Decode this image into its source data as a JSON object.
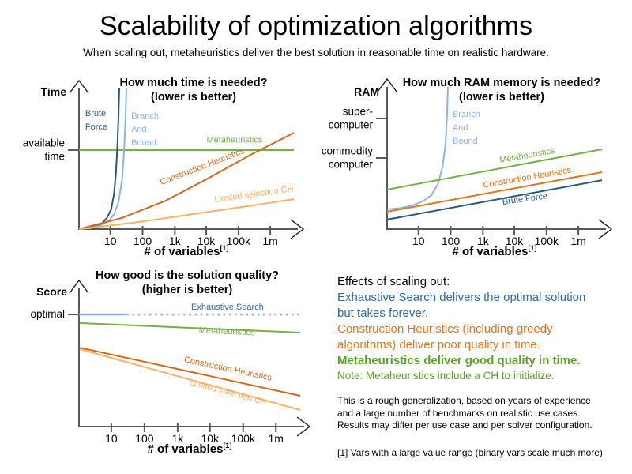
{
  "header": {
    "title": "Scalability of optimization algorithms",
    "subtitle": "When scaling out, metaheuristics deliver the best solution in reasonable time on realistic hardware."
  },
  "colors": {
    "dark_blue": "#2a5784",
    "light_blue": "#8eb4e3",
    "green": "#76b043",
    "dark_orange": "#d2691e",
    "light_orange": "#f8b267",
    "pale_blue": "#95b3d7",
    "text_blue": "#31699f",
    "text_orange": "#e2751d",
    "text_green": "#5aa028",
    "axis_gray": "#595959",
    "arrow_black": "#1a1a1a"
  },
  "effects": {
    "heading": "Effects of scaling out:",
    "exhaustive_line1": "Exhaustive Search delivers the optimal solution",
    "exhaustive_line2": "but takes forever.",
    "construction_line1": "Construction Heuristics (including greedy",
    "construction_line2": "algorithms) deliver poor quality in time.",
    "metaheuristics_line": "Metaheuristics deliver good quality in time.",
    "note_line": "Note: Metaheuristics include a CH to initialize."
  },
  "notes": {
    "disclaimer_line1": "This is a rough generalization, based on years of experience",
    "disclaimer_line2": "and a large number of benchmarks on realistic use cases.",
    "disclaimer_line3": "Results may differ per use case and per solver configuration.",
    "footnote": "[1] Vars with a large value range (binary vars scale much more)"
  },
  "chart_data": [
    {
      "id": "time",
      "type": "line",
      "title": "How much time is needed?",
      "title_note": "(lower is better)",
      "y_axis_label": "Time",
      "x_axis_label": "# of variables",
      "x_axis_label_sup": "[1]",
      "x_axis_type": "log",
      "x_tick_labels": [
        "10",
        "100",
        "1k",
        "10k",
        "100k",
        "1m"
      ],
      "y_ticks": [
        {
          "lines": [
            "available",
            "time"
          ],
          "ny": 0.562
        }
      ],
      "series": [
        {
          "name": "Metaheuristics",
          "color": "#76b043",
          "shape": "constant-at-available-time",
          "points": [
            [
              0,
              0.562
            ],
            [
              1,
              0.562
            ]
          ],
          "label": {
            "lines": [
              "Metaheuristics"
            ],
            "nx": 0.724,
            "ny": 0.615,
            "anchor": "middle",
            "rotate": 0
          }
        },
        {
          "name": "Brute Force",
          "color": "#2a5784",
          "shape": "exponential",
          "points": [
            [
              0,
              0
            ],
            [
              0.04,
              0.006
            ],
            [
              0.08,
              0.02
            ],
            [
              0.11,
              0.045
            ],
            [
              0.13,
              0.08
            ],
            [
              0.15,
              0.14
            ],
            [
              0.163,
              0.25
            ],
            [
              0.172,
              0.4
            ],
            [
              0.179,
              0.6
            ],
            [
              0.184,
              0.8
            ],
            [
              0.1875,
              1
            ]
          ],
          "label": {
            "lines": [
              "Brute",
              "Force"
            ],
            "nx": 0.029,
            "ny": 0.803,
            "anchor": "start",
            "rotate": 0
          }
        },
        {
          "name": "Branch And Bound",
          "color": "#8eb4e3",
          "shape": "exponential",
          "points": [
            [
              0,
              0
            ],
            [
              0.05,
              0.006
            ],
            [
              0.1,
              0.025
            ],
            [
              0.14,
              0.06
            ],
            [
              0.165,
              0.11
            ],
            [
              0.185,
              0.2
            ],
            [
              0.2,
              0.35
            ],
            [
              0.21,
              0.55
            ],
            [
              0.216,
              0.78
            ],
            [
              0.2205,
              1
            ]
          ],
          "label": {
            "lines": [
              "Branch",
              "And",
              "Bound"
            ],
            "nx": 0.243,
            "ny": 0.787,
            "anchor": "start",
            "rotate": 0
          }
        },
        {
          "name": "Construction Heuristics",
          "color": "#d2691e",
          "shape": "increasing-convex",
          "points": [
            [
              0,
              0
            ],
            [
              0.2,
              0.08
            ],
            [
              0.4,
              0.2
            ],
            [
              0.6,
              0.36
            ],
            [
              0.8,
              0.53
            ],
            [
              1,
              0.685
            ]
          ],
          "label": {
            "lines": [
              "Construction Heuristics"
            ],
            "nx": 0.577,
            "ny": 0.427,
            "anchor": "middle",
            "rotate": -21
          }
        },
        {
          "name": "Limited selection CH",
          "color": "#f8b267",
          "shape": "increasing-slow",
          "points": [
            [
              0,
              0
            ],
            [
              0.25,
              0.045
            ],
            [
              0.5,
              0.1
            ],
            [
              0.75,
              0.155
            ],
            [
              1,
              0.213
            ]
          ],
          "label": {
            "lines": [
              "Limited selection CH"
            ],
            "nx": 0.816,
            "ny": 0.23,
            "anchor": "middle",
            "rotate": -8
          }
        }
      ]
    },
    {
      "id": "ram",
      "type": "line",
      "title": "How much RAM memory is needed?",
      "title_note": "(lower is better)",
      "y_axis_label": "RAM",
      "x_axis_label": "# of variables",
      "x_axis_label_sup": "[1]",
      "x_axis_type": "log",
      "x_tick_labels": [
        "10",
        "100",
        "1k",
        "10k",
        "100k",
        "1m"
      ],
      "y_ticks": [
        {
          "lines": [
            "super-",
            "computer"
          ],
          "ny": 0.778
        },
        {
          "lines": [
            "commodity",
            "computer"
          ],
          "ny": 0.5
        }
      ],
      "series": [
        {
          "name": "Branch And Bound",
          "color": "#8eb4e3",
          "shape": "exponential",
          "points": [
            [
              0,
              0.139
            ],
            [
              0.062,
              0.148
            ],
            [
              0.114,
              0.165
            ],
            [
              0.165,
              0.195
            ],
            [
              0.207,
              0.24
            ],
            [
              0.238,
              0.32
            ],
            [
              0.258,
              0.44
            ],
            [
              0.272,
              0.6
            ],
            [
              0.279,
              0.8
            ],
            [
              0.283,
              1
            ]
          ],
          "label": {
            "lines": [
              "Branch",
              "And",
              "Bound"
            ],
            "nx": 0.305,
            "ny": 0.789,
            "anchor": "start",
            "rotate": 0
          }
        },
        {
          "name": "Metaheuristics",
          "color": "#76b043",
          "shape": "increasing-linear",
          "points": [
            [
              0,
              0.278
            ],
            [
              1,
              0.561
            ]
          ],
          "label": {
            "lines": [
              "Metaheuristics"
            ],
            "nx": 0.654,
            "ny": 0.5,
            "anchor": "middle",
            "rotate": -10
          }
        },
        {
          "name": "Construction Heuristics",
          "color": "#e2751d",
          "shape": "increasing-linear",
          "points": [
            [
              0,
              0.122
            ],
            [
              1,
              0.4
            ]
          ],
          "label": {
            "lines": [
              "Construction Heuristics"
            ],
            "nx": 0.654,
            "ny": 0.344,
            "anchor": "middle",
            "rotate": -10
          }
        },
        {
          "name": "Brute Force",
          "color": "#2a5784",
          "shape": "increasing-linear",
          "points": [
            [
              0,
              0.067
            ],
            [
              1,
              0.344
            ]
          ],
          "label": {
            "lines": [
              "Brute Force"
            ],
            "nx": 0.643,
            "ny": 0.194,
            "anchor": "middle",
            "rotate": -8
          }
        }
      ]
    },
    {
      "id": "score",
      "type": "line",
      "title": "How good is the solution quality?",
      "title_note": "(higher is better)",
      "y_axis_label": "Score",
      "x_axis_label": "# of variables",
      "x_axis_label_sup": "[1]",
      "x_axis_type": "log",
      "x_tick_labels": [
        "10",
        "100",
        "1k",
        "10k",
        "100k",
        "1m"
      ],
      "y_ticks": [
        {
          "lines": [
            "optimal"
          ],
          "ny": 0.811
        }
      ],
      "series": [
        {
          "name": "Exhaustive Search",
          "color": "#95b3d7",
          "shape": "constant-optimal-then-unreached",
          "parts": [
            {
              "points": [
                [
                  0,
                  0.811
                ],
                [
                  0.21,
                  0.811
                ]
              ],
              "dash": null,
              "width": 2.6
            },
            {
              "points": [
                [
                  0.215,
                  0.811
                ],
                [
                  1,
                  0.811
                ]
              ],
              "dash": "2.6 4.6",
              "width": 2.6
            }
          ],
          "label": {
            "lines": [
              "Exhaustive Search"
            ],
            "nx": 0.671,
            "ny": 0.846,
            "anchor": "middle",
            "rotate": 0,
            "color": "#31699f"
          }
        },
        {
          "name": "Metaheuristics",
          "color": "#76b043",
          "shape": "slightly-decreasing",
          "points": [
            [
              0.004,
              0.749
            ],
            [
              1,
              0.68
            ]
          ],
          "label": {
            "lines": [
              "Metaheuristics"
            ],
            "nx": 0.668,
            "ny": 0.669,
            "anchor": "middle",
            "rotate": 2.5
          }
        },
        {
          "name": "Construction Heuristics",
          "color": "#d2691e",
          "shape": "decreasing-linear",
          "points": [
            [
              0.004,
              0.571
            ],
            [
              1,
              0.223
            ]
          ],
          "label": {
            "lines": [
              "Construction Heuristics"
            ],
            "nx": 0.671,
            "ny": 0.4,
            "anchor": "middle",
            "rotate": 12
          }
        },
        {
          "name": "Limited selection CH",
          "color": "#f8b267",
          "shape": "decreasing-linear",
          "points": [
            [
              0.004,
              0.56
            ],
            [
              1,
              0.12
            ]
          ],
          "label": {
            "lines": [
              "Limited selection CH"
            ],
            "nx": 0.671,
            "ny": 0.229,
            "anchor": "middle",
            "rotate": 15
          }
        }
      ]
    }
  ]
}
